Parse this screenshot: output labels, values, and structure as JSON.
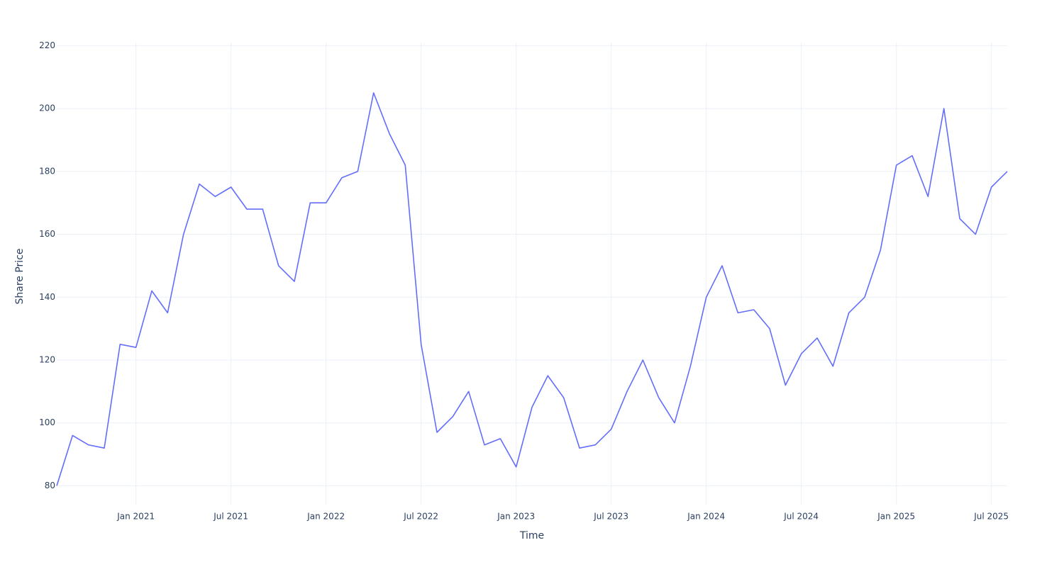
{
  "chart_data": {
    "type": "line",
    "x_label": "Time",
    "y_label": "Share Price",
    "x": [
      "2020-08",
      "2020-09",
      "2020-10",
      "2020-11",
      "2020-12",
      "2021-01",
      "2021-02",
      "2021-03",
      "2021-04",
      "2021-05",
      "2021-06",
      "2021-07",
      "2021-08",
      "2021-09",
      "2021-10",
      "2021-11",
      "2021-12",
      "2022-01",
      "2022-02",
      "2022-03",
      "2022-04",
      "2022-05",
      "2022-06",
      "2022-07",
      "2022-08",
      "2022-09",
      "2022-10",
      "2022-11",
      "2022-12",
      "2023-01",
      "2023-02",
      "2023-03",
      "2023-04",
      "2023-05",
      "2023-06",
      "2023-07",
      "2023-08",
      "2023-09",
      "2023-10",
      "2023-11",
      "2023-12",
      "2024-01",
      "2024-02",
      "2024-03",
      "2024-04",
      "2024-05",
      "2024-06",
      "2024-07",
      "2024-08",
      "2024-09",
      "2024-10",
      "2024-11",
      "2024-12",
      "2025-01",
      "2025-02",
      "2025-03",
      "2025-04",
      "2025-05",
      "2025-06",
      "2025-07",
      "2025-08"
    ],
    "series": [
      {
        "color": "#636efa",
        "values": [
          80,
          96,
          93,
          92,
          125,
          124,
          142,
          135,
          160,
          176,
          172,
          175,
          168,
          168,
          150,
          145,
          170,
          170,
          178,
          180,
          205,
          192,
          182,
          125,
          97,
          102,
          110,
          93,
          95,
          86,
          105,
          115,
          108,
          92,
          93,
          98,
          110,
          120,
          108,
          100,
          118,
          140,
          150,
          135,
          136,
          130,
          112,
          122,
          127,
          118,
          135,
          140,
          155,
          182,
          185,
          172,
          200,
          165,
          160,
          175,
          180
        ]
      }
    ],
    "xlim": [
      "2020-08",
      "2025-08"
    ],
    "xticks": [
      {
        "value": "2021-01",
        "label": "Jan 2021"
      },
      {
        "value": "2021-07",
        "label": "Jul 2021"
      },
      {
        "value": "2022-01",
        "label": "Jan 2022"
      },
      {
        "value": "2022-07",
        "label": "Jul 2022"
      },
      {
        "value": "2023-01",
        "label": "Jan 2023"
      },
      {
        "value": "2023-07",
        "label": "Jul 2023"
      },
      {
        "value": "2024-01",
        "label": "Jan 2024"
      },
      {
        "value": "2024-07",
        "label": "Jul 2024"
      },
      {
        "value": "2025-01",
        "label": "Jan 2025"
      },
      {
        "value": "2025-07",
        "label": "Jul 2025"
      }
    ],
    "ylim": [
      74,
      221
    ],
    "yticks": [
      80,
      100,
      120,
      140,
      160,
      180,
      200,
      220
    ],
    "grid": true
  }
}
